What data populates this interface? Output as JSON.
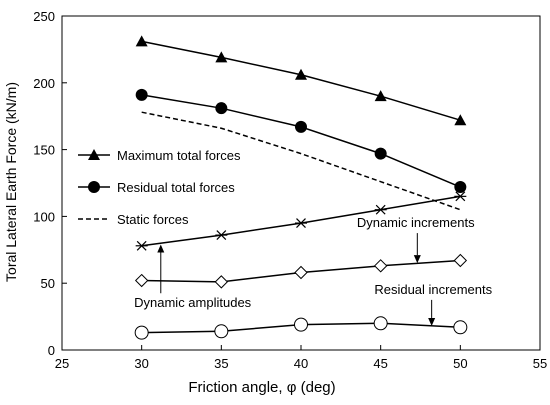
{
  "chart_data": {
    "type": "line",
    "xlabel": "Friction angle, φ (deg)",
    "ylabel": "Toral Lateral Earth Force (kN/m)",
    "xlim": [
      25,
      55
    ],
    "ylim": [
      0,
      250
    ],
    "xticks": [
      25,
      30,
      35,
      40,
      45,
      50,
      55
    ],
    "yticks": [
      0,
      50,
      100,
      150,
      200,
      250
    ],
    "grid": false,
    "legend_placement": "center-left",
    "series": [
      {
        "name": "Maximum total forces",
        "marker": "triangle",
        "line": "solid",
        "x": [
          30,
          35,
          40,
          45,
          50
        ],
        "y": [
          231,
          219,
          206,
          190,
          172
        ]
      },
      {
        "name": "Residual total forces",
        "marker": "circle-filled",
        "line": "solid",
        "x": [
          30,
          35,
          40,
          45,
          50
        ],
        "y": [
          191,
          181,
          167,
          147,
          122
        ]
      },
      {
        "name": "Static forces",
        "marker": "none",
        "line": "dashed",
        "x": [
          30,
          35,
          40,
          45,
          50
        ],
        "y": [
          178,
          166,
          147,
          126,
          105
        ]
      },
      {
        "name": "",
        "marker": "asterisk",
        "line": "solid",
        "x": [
          30,
          35,
          40,
          45,
          50
        ],
        "y": [
          78,
          86,
          95,
          105,
          115
        ]
      },
      {
        "name": "",
        "marker": "diamond-open",
        "line": "solid",
        "x": [
          30,
          35,
          40,
          45,
          50
        ],
        "y": [
          52,
          51,
          58,
          63,
          67
        ]
      },
      {
        "name": "",
        "marker": "circle-open",
        "line": "solid",
        "x": [
          30,
          35,
          40,
          45,
          50
        ],
        "y": [
          13,
          14,
          19,
          20,
          17
        ]
      }
    ],
    "annotations": [
      {
        "text": "Dynamic increments",
        "text_x": 47.2,
        "text_y": 92,
        "arrow_to_x": 47.3,
        "arrow_to_y": 65
      },
      {
        "text": "Dynamic amplitudes",
        "text_x": 33.2,
        "text_y": 32,
        "arrow_to_x": 31.2,
        "arrow_to_y": 79
      },
      {
        "text": "Residual increments",
        "text_x": 48.3,
        "text_y": 42,
        "arrow_to_x": 48.2,
        "arrow_to_y": 18
      }
    ]
  }
}
